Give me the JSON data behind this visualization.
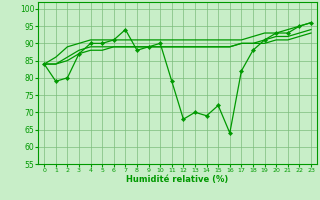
{
  "xlabel": "Humidité relative (%)",
  "bg_color": "#c8eec8",
  "grid_color": "#7cbc7c",
  "line_color": "#009900",
  "xlim": [
    -0.5,
    23.5
  ],
  "ylim": [
    55,
    102
  ],
  "yticks": [
    55,
    60,
    65,
    70,
    75,
    80,
    85,
    90,
    95,
    100
  ],
  "xticks": [
    0,
    1,
    2,
    3,
    4,
    5,
    6,
    7,
    8,
    9,
    10,
    11,
    12,
    13,
    14,
    15,
    16,
    17,
    18,
    19,
    20,
    21,
    22,
    23
  ],
  "series_marker": [
    84,
    79,
    80,
    87,
    90,
    90,
    91,
    94,
    88,
    89,
    90,
    79,
    68,
    70,
    69,
    72,
    64,
    82,
    88,
    91,
    93,
    93,
    95,
    96
  ],
  "series_smooth1": [
    84,
    86,
    89,
    90,
    91,
    91,
    91,
    91,
    91,
    91,
    91,
    91,
    91,
    91,
    91,
    91,
    91,
    91,
    92,
    93,
    93,
    94,
    95,
    96
  ],
  "series_smooth2": [
    84,
    84,
    86,
    88,
    89,
    89,
    89,
    89,
    89,
    89,
    89,
    89,
    89,
    89,
    89,
    89,
    89,
    90,
    90,
    91,
    92,
    92,
    93,
    94
  ],
  "series_smooth3": [
    84,
    84,
    85,
    87,
    88,
    88,
    89,
    89,
    89,
    89,
    89,
    89,
    89,
    89,
    89,
    89,
    89,
    90,
    90,
    90,
    91,
    91,
    92,
    93
  ]
}
